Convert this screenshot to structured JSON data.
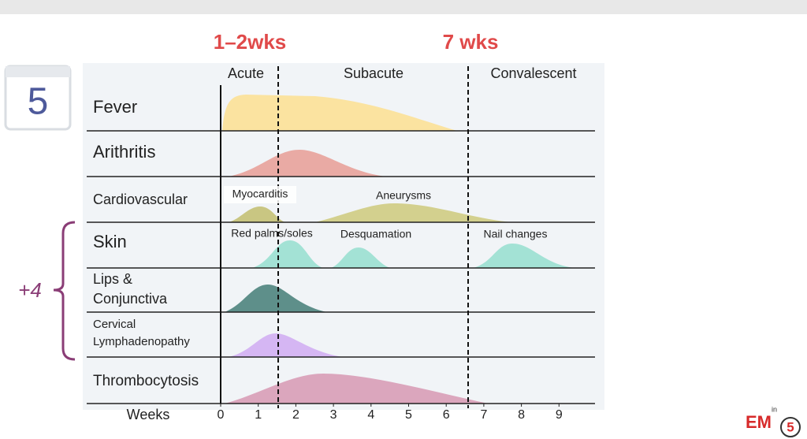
{
  "header": {
    "annotations": [
      "1–2wks",
      "7 wks"
    ],
    "badge": "5"
  },
  "phases": [
    "Acute",
    "Subacute",
    "Convalescent"
  ],
  "rows": [
    {
      "label": [
        "Fever"
      ]
    },
    {
      "label": [
        "Arithritis"
      ]
    },
    {
      "label": [
        "Cardiovascular"
      ],
      "annotations": [
        "Myocarditis",
        "Aneurysms"
      ]
    },
    {
      "label": [
        "Skin"
      ],
      "annotations": [
        "Red palms/soles",
        "Desquamation",
        "Nail changes"
      ]
    },
    {
      "label": [
        "Lips &",
        "Conjunctiva"
      ]
    },
    {
      "label": [
        "Cervical",
        "Lymphadenopathy"
      ]
    },
    {
      "label": [
        "Thrombocytosis"
      ]
    }
  ],
  "side_note": "+4",
  "axis": {
    "label": "Weeks",
    "ticks": [
      0,
      1,
      2,
      3,
      4,
      5,
      6,
      7,
      8,
      9
    ]
  },
  "logo": {
    "main": "EM",
    "small": "in",
    "number": "5"
  }
}
